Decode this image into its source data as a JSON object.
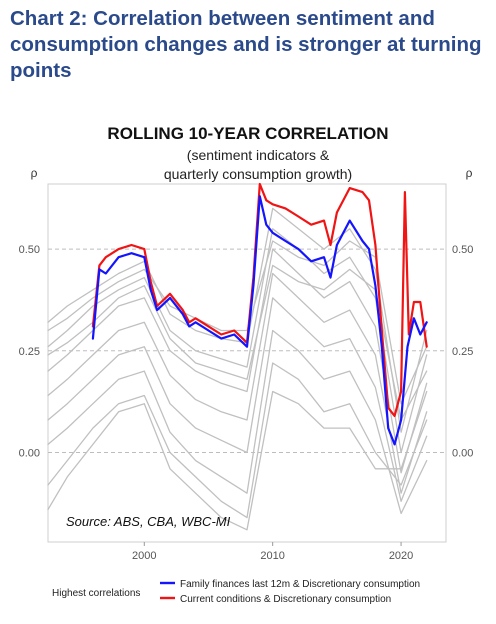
{
  "page": {
    "heading": "Chart 2: Correlation between sentiment and consumption changes and is stronger at turning points"
  },
  "colors": {
    "heading": "#2b4a8b",
    "grey_series": "#c0c0c0",
    "blue_series": "#1414ff",
    "red_series": "#f01414",
    "gridline": "#bdbdbd"
  },
  "chart_data": {
    "type": "line",
    "title": "ROLLING 10-YEAR CORRELATION",
    "subtitle_line1": "(sentiment indicators &",
    "subtitle_line2": "quarterly consumption growth)",
    "ylabel_left": "ρ",
    "ylabel_right": "ρ",
    "source": "Source: ABS, CBA, WBC-MI",
    "xlim": [
      1992.5,
      2023.5
    ],
    "ylim": [
      -0.22,
      0.66
    ],
    "x_ticks": [
      2000,
      2010,
      2020
    ],
    "x_tick_labels": [
      "2000",
      "2010",
      "2020"
    ],
    "y_ticks": [
      0.0,
      0.25,
      0.5
    ],
    "y_tick_labels": [
      "0.00",
      "0.25",
      "0.50"
    ],
    "grid": "horizontal dashed",
    "legend": {
      "title": "Highest correlations",
      "position": "bottom-left",
      "entries": [
        "Family finances last 12m & Discretionary consumption",
        "Current conditions & Discretionary consumption"
      ]
    },
    "series": [
      {
        "name": "Family finances last 12m & Discretionary consumption",
        "color": "#1414ff",
        "x": [
          1996.0,
          1996.5,
          1997.0,
          1998.0,
          1999.0,
          2000.0,
          2000.5,
          2001.0,
          2002.0,
          2003.0,
          2003.5,
          2004.0,
          2005.0,
          2006.0,
          2007.0,
          2008.0,
          2008.5,
          2009.0,
          2009.5,
          2010.0,
          2011.0,
          2012.0,
          2013.0,
          2014.0,
          2014.5,
          2015.0,
          2016.0,
          2017.0,
          2017.5,
          2018.0,
          2018.5,
          2019.0,
          2019.5,
          2020.0,
          2020.5,
          2021.0,
          2021.5,
          2022.0
        ],
        "y": [
          0.28,
          0.45,
          0.44,
          0.48,
          0.49,
          0.48,
          0.4,
          0.35,
          0.38,
          0.34,
          0.31,
          0.32,
          0.3,
          0.28,
          0.29,
          0.26,
          0.41,
          0.63,
          0.56,
          0.54,
          0.52,
          0.5,
          0.47,
          0.48,
          0.43,
          0.51,
          0.57,
          0.52,
          0.5,
          0.41,
          0.26,
          0.06,
          0.02,
          0.08,
          0.26,
          0.33,
          0.29,
          0.32
        ]
      },
      {
        "name": "Current conditions & Discretionary consumption",
        "color": "#f01414",
        "x": [
          1996.0,
          1996.5,
          1997.0,
          1998.0,
          1999.0,
          2000.0,
          2000.5,
          2001.0,
          2002.0,
          2003.0,
          2003.5,
          2004.0,
          2005.0,
          2006.0,
          2007.0,
          2008.0,
          2008.5,
          2009.0,
          2009.5,
          2010.0,
          2011.0,
          2012.0,
          2013.0,
          2014.0,
          2014.5,
          2015.0,
          2016.0,
          2017.0,
          2017.5,
          2018.0,
          2018.5,
          2019.0,
          2019.5,
          2020.0,
          2020.3,
          2020.6,
          2021.0,
          2021.5,
          2022.0
        ],
        "y": [
          0.31,
          0.46,
          0.48,
          0.5,
          0.51,
          0.5,
          0.42,
          0.36,
          0.39,
          0.35,
          0.32,
          0.33,
          0.31,
          0.29,
          0.3,
          0.27,
          0.43,
          0.66,
          0.62,
          0.61,
          0.6,
          0.58,
          0.56,
          0.57,
          0.51,
          0.59,
          0.65,
          0.64,
          0.62,
          0.51,
          0.3,
          0.11,
          0.09,
          0.15,
          0.64,
          0.29,
          0.37,
          0.37,
          0.26
        ]
      }
    ],
    "background_series": [
      {
        "color": "#c0c0c0",
        "x": [
          1992.5,
          1994,
          1996,
          1998,
          2000,
          2002,
          2004,
          2006,
          2008,
          2010,
          2012,
          2014,
          2016,
          2018,
          2020,
          2022
        ],
        "y": [
          0.32,
          0.36,
          0.4,
          0.44,
          0.47,
          0.34,
          0.3,
          0.28,
          0.27,
          0.6,
          0.55,
          0.5,
          0.55,
          0.45,
          0.05,
          0.3
        ]
      },
      {
        "color": "#c0c0c0",
        "x": [
          1992.5,
          1994,
          1996,
          1998,
          2000,
          2002,
          2004,
          2006,
          2008,
          2010,
          2012,
          2014,
          2016,
          2018,
          2020,
          2022
        ],
        "y": [
          0.26,
          0.3,
          0.36,
          0.4,
          0.43,
          0.3,
          0.25,
          0.23,
          0.21,
          0.55,
          0.5,
          0.44,
          0.48,
          0.38,
          0.0,
          0.24
        ]
      },
      {
        "color": "#c0c0c0",
        "x": [
          1992.5,
          1994,
          1996,
          1998,
          2000,
          2002,
          2004,
          2006,
          2008,
          2010,
          2012,
          2014,
          2016,
          2018,
          2020,
          2022
        ],
        "y": [
          0.2,
          0.24,
          0.3,
          0.36,
          0.38,
          0.25,
          0.2,
          0.17,
          0.15,
          0.5,
          0.44,
          0.38,
          0.42,
          0.31,
          -0.05,
          0.17
        ]
      },
      {
        "color": "#c0c0c0",
        "x": [
          1992.5,
          1994,
          1996,
          1998,
          2000,
          2002,
          2004,
          2006,
          2008,
          2010,
          2012,
          2014,
          2016,
          2018,
          2020,
          2022
        ],
        "y": [
          0.14,
          0.18,
          0.24,
          0.3,
          0.32,
          0.19,
          0.13,
          0.1,
          0.08,
          0.44,
          0.38,
          0.32,
          0.35,
          0.24,
          -0.1,
          0.1
        ]
      },
      {
        "color": "#c0c0c0",
        "x": [
          1992.5,
          1994,
          1996,
          1998,
          2000,
          2002,
          2004,
          2006,
          2008,
          2010,
          2012,
          2014,
          2016,
          2018,
          2020,
          2022
        ],
        "y": [
          0.08,
          0.12,
          0.18,
          0.24,
          0.26,
          0.12,
          0.06,
          0.03,
          0.0,
          0.38,
          0.32,
          0.26,
          0.28,
          0.16,
          -0.12,
          0.04
        ]
      },
      {
        "color": "#c0c0c0",
        "x": [
          1992.5,
          1994,
          1996,
          1998,
          2000,
          2002,
          2004,
          2006,
          2008,
          2010,
          2012,
          2014,
          2016,
          2018,
          2020,
          2022
        ],
        "y": [
          0.02,
          0.06,
          0.12,
          0.18,
          0.2,
          0.05,
          -0.02,
          -0.06,
          -0.1,
          0.3,
          0.25,
          0.18,
          0.2,
          0.08,
          -0.15,
          -0.02
        ]
      },
      {
        "color": "#c0c0c0",
        "x": [
          1992.5,
          1994,
          1996,
          1998,
          2000,
          2002,
          2004,
          2006,
          2008,
          2010,
          2012,
          2014,
          2016,
          2018,
          2020,
          2022
        ],
        "y": [
          -0.08,
          -0.02,
          0.06,
          0.12,
          0.14,
          0.0,
          -0.06,
          -0.12,
          -0.16,
          0.22,
          0.18,
          0.1,
          0.12,
          0.0,
          -0.08,
          0.08
        ]
      },
      {
        "color": "#c0c0c0",
        "x": [
          1992.5,
          1994,
          1996,
          1998,
          2000,
          2002,
          2004,
          2006,
          2008,
          2010,
          2012,
          2014,
          2016,
          2018,
          2020,
          2022
        ],
        "y": [
          -0.14,
          -0.06,
          0.02,
          0.1,
          0.12,
          -0.04,
          -0.1,
          -0.16,
          -0.19,
          0.15,
          0.12,
          0.06,
          0.06,
          -0.04,
          -0.04,
          0.15
        ]
      },
      {
        "color": "#c0c0c0",
        "x": [
          1992.5,
          1994,
          1996,
          1998,
          2000,
          2002,
          2004,
          2006,
          2008,
          2010,
          2012,
          2014,
          2016,
          2018,
          2020,
          2022
        ],
        "y": [
          0.3,
          0.33,
          0.38,
          0.42,
          0.45,
          0.36,
          0.33,
          0.3,
          0.3,
          0.52,
          0.48,
          0.46,
          0.52,
          0.48,
          0.12,
          0.26
        ]
      },
      {
        "color": "#c0c0c0",
        "x": [
          1992.5,
          1994,
          1996,
          1998,
          2000,
          2002,
          2004,
          2006,
          2008,
          2010,
          2012,
          2014,
          2016,
          2018,
          2020,
          2022
        ],
        "y": [
          0.24,
          0.27,
          0.32,
          0.38,
          0.41,
          0.28,
          0.22,
          0.2,
          0.18,
          0.46,
          0.42,
          0.4,
          0.45,
          0.4,
          0.08,
          0.2
        ]
      }
    ]
  }
}
